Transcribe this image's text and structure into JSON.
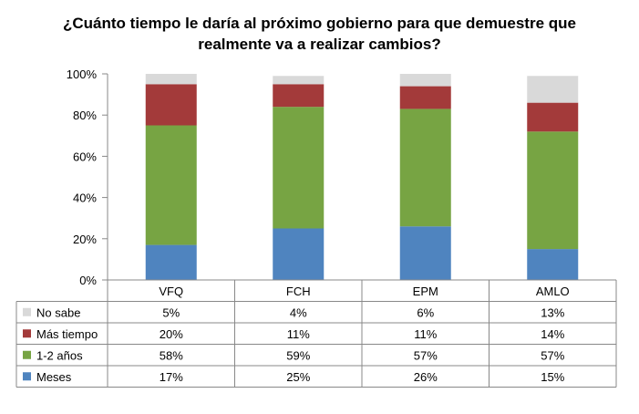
{
  "chart_data": {
    "type": "bar",
    "stacked": true,
    "title_lines": [
      "¿Cuánto tiempo le daría al próximo gobierno para que demuestre que",
      "realmente va a realizar cambios?"
    ],
    "categories": [
      "VFQ",
      "FCH",
      "EPM",
      "AMLO"
    ],
    "ylim": [
      0,
      100
    ],
    "yticks": [
      0,
      20,
      40,
      60,
      80,
      100
    ],
    "ytick_labels": [
      "0%",
      "20%",
      "40%",
      "60%",
      "80%",
      "100%"
    ],
    "grid": false,
    "legend_placement": "data-table-left",
    "series": [
      {
        "name": "No sabe",
        "values": [
          5,
          4,
          6,
          13
        ],
        "labels": [
          "5%",
          "4%",
          "6%",
          "13%"
        ],
        "color": "#d9d9d9"
      },
      {
        "name": "Más tiempo",
        "values": [
          20,
          11,
          11,
          14
        ],
        "labels": [
          "20%",
          "11%",
          "11%",
          "14%"
        ],
        "color": "#a33a3a"
      },
      {
        "name": "1-2 años",
        "values": [
          58,
          59,
          57,
          57
        ],
        "labels": [
          "58%",
          "59%",
          "57%",
          "57%"
        ],
        "color": "#77a443"
      },
      {
        "name": "Meses",
        "values": [
          17,
          25,
          26,
          15
        ],
        "labels": [
          "17%",
          "25%",
          "26%",
          "15%"
        ],
        "color": "#4f84bf"
      }
    ]
  }
}
